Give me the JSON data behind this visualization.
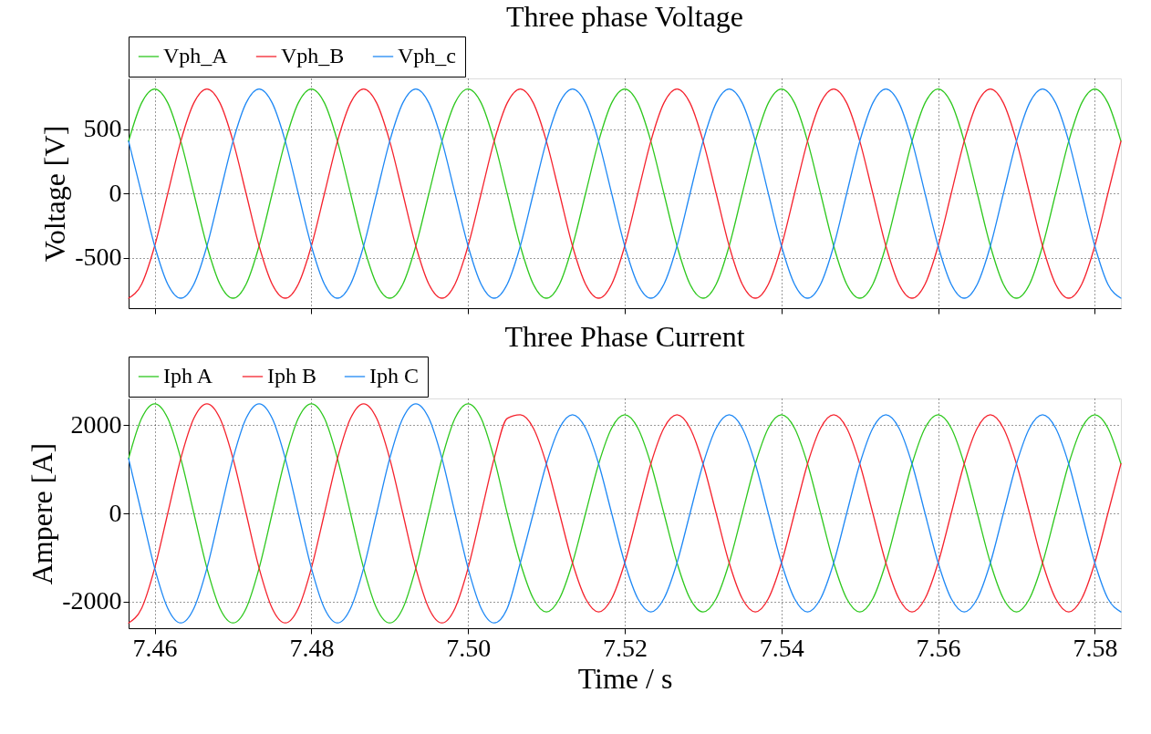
{
  "chart_data": [
    {
      "type": "line",
      "title": "Three phase Voltage",
      "ylabel": "Voltage [V]",
      "grid": true,
      "legend": "top",
      "tick_labels": "y",
      "xlim": [
        7.45667,
        7.58333
      ],
      "ylim": [
        -893,
        897
      ],
      "xticks": [
        7.46,
        7.48,
        7.5,
        7.52,
        7.54,
        7.56,
        7.58
      ],
      "yticks": [
        -500,
        0,
        500
      ],
      "x": [
        7.45667,
        7.45833,
        7.46,
        7.46167,
        7.46333,
        7.465,
        7.46667,
        7.46833,
        7.47,
        7.47167,
        7.47333,
        7.475,
        7.47667,
        7.47833,
        7.48,
        7.48167,
        7.48333,
        7.485,
        7.48667,
        7.48833,
        7.49,
        7.49167,
        7.49333,
        7.495,
        7.49667,
        7.49833,
        7.5,
        7.50167,
        7.50333,
        7.505,
        7.50667,
        7.50833,
        7.51,
        7.51167,
        7.51333,
        7.515,
        7.51667,
        7.51833,
        7.52,
        7.52167,
        7.52333,
        7.525,
        7.52667,
        7.52833,
        7.53,
        7.53167,
        7.53333,
        7.535,
        7.53667,
        7.53833,
        7.54,
        7.54167,
        7.54333,
        7.545,
        7.54667,
        7.54833,
        7.55,
        7.55167,
        7.55333,
        7.555,
        7.55667,
        7.55833,
        7.56,
        7.56167,
        7.56333,
        7.565,
        7.56667,
        7.56833,
        7.57,
        7.57167,
        7.57333,
        7.575,
        7.57667,
        7.57833,
        7.58,
        7.58167,
        7.58333
      ],
      "series": [
        {
          "name": "Vph_A",
          "color": "#2ec81e",
          "values": [
            408,
            706,
            815,
            706,
            408,
            0,
            -408,
            -706,
            -815,
            -706,
            -408,
            0,
            408,
            706,
            815,
            706,
            408,
            0,
            -408,
            -706,
            -815,
            -706,
            -408,
            0,
            408,
            706,
            815,
            706,
            408,
            0,
            -408,
            -706,
            -815,
            -706,
            -408,
            0,
            408,
            706,
            815,
            706,
            408,
            0,
            -408,
            -706,
            -815,
            -706,
            -408,
            0,
            408,
            706,
            815,
            706,
            408,
            0,
            -408,
            -706,
            -815,
            -706,
            -408,
            0,
            408,
            706,
            815,
            706,
            408,
            0,
            -408,
            -706,
            -815,
            -706,
            -408,
            0,
            408,
            706,
            815,
            706,
            408
          ]
        },
        {
          "name": "Vph_B",
          "color": "#f5222d",
          "values": [
            -815,
            -706,
            -408,
            0,
            408,
            706,
            815,
            706,
            408,
            0,
            -408,
            -706,
            -815,
            -706,
            -408,
            0,
            408,
            706,
            815,
            706,
            408,
            0,
            -408,
            -706,
            -815,
            -706,
            -408,
            0,
            408,
            706,
            815,
            706,
            408,
            0,
            -408,
            -706,
            -815,
            -706,
            -408,
            0,
            408,
            706,
            815,
            706,
            408,
            0,
            -408,
            -706,
            -815,
            -706,
            -408,
            0,
            408,
            706,
            815,
            706,
            408,
            0,
            -408,
            -706,
            -815,
            -706,
            -408,
            0,
            408,
            706,
            815,
            706,
            408,
            0,
            -408,
            -706,
            -815,
            -706,
            -408,
            0,
            408
          ]
        },
        {
          "name": "Vph_c",
          "color": "#1e88f5",
          "values": [
            408,
            0,
            -408,
            -706,
            -815,
            -706,
            -408,
            0,
            408,
            706,
            815,
            706,
            408,
            0,
            -408,
            -706,
            -815,
            -706,
            -408,
            0,
            408,
            706,
            815,
            706,
            408,
            0,
            -408,
            -706,
            -815,
            -706,
            -408,
            0,
            408,
            706,
            815,
            706,
            408,
            0,
            -408,
            -706,
            -815,
            -706,
            -408,
            0,
            408,
            706,
            815,
            706,
            408,
            0,
            -408,
            -706,
            -815,
            -706,
            -408,
            0,
            408,
            706,
            815,
            706,
            408,
            0,
            -408,
            -706,
            -815,
            -706,
            -408,
            0,
            408,
            706,
            815,
            706,
            408,
            0,
            -408,
            -706,
            -815
          ]
        }
      ]
    },
    {
      "type": "line",
      "title": "Three Phase Current",
      "xlabel": "Time / s",
      "ylabel": "Ampere [A]",
      "grid": true,
      "legend": "top",
      "xlim": [
        7.45667,
        7.58333
      ],
      "ylim": [
        -2600,
        2600
      ],
      "xticks": [
        7.46,
        7.48,
        {
          "value": 7.5,
          "label": "7.50"
        },
        7.52,
        7.54,
        7.56,
        7.58
      ],
      "yticks": [
        -2000,
        0,
        2000
      ],
      "x": [
        7.45667,
        7.45833,
        7.46,
        7.46167,
        7.46333,
        7.465,
        7.46667,
        7.46833,
        7.47,
        7.47167,
        7.47333,
        7.475,
        7.47667,
        7.47833,
        7.48,
        7.48167,
        7.48333,
        7.485,
        7.48667,
        7.48833,
        7.49,
        7.49167,
        7.49333,
        7.495,
        7.49667,
        7.49833,
        7.5,
        7.50167,
        7.50333,
        7.505,
        7.50667,
        7.50833,
        7.51,
        7.51167,
        7.51333,
        7.515,
        7.51667,
        7.51833,
        7.52,
        7.52167,
        7.52333,
        7.525,
        7.52667,
        7.52833,
        7.53,
        7.53167,
        7.53333,
        7.535,
        7.53667,
        7.53833,
        7.54,
        7.54167,
        7.54333,
        7.545,
        7.54667,
        7.54833,
        7.55,
        7.55167,
        7.55333,
        7.555,
        7.55667,
        7.55833,
        7.56,
        7.56167,
        7.56333,
        7.565,
        7.56667,
        7.56833,
        7.57,
        7.57167,
        7.57333,
        7.575,
        7.57667,
        7.57833,
        7.58,
        7.58167,
        7.58333
      ],
      "series": [
        {
          "name": "Iph A",
          "color": "#2ec81e",
          "values": [
            1240,
            2150,
            2480,
            2150,
            1240,
            0,
            -1240,
            -2150,
            -2480,
            -2150,
            -1240,
            0,
            1240,
            2150,
            2480,
            2150,
            1240,
            0,
            -1240,
            -2150,
            -2480,
            -2150,
            -1240,
            0,
            1240,
            2150,
            2480,
            2150,
            1240,
            0,
            -1120,
            -1930,
            -2230,
            -1930,
            -1120,
            0,
            1120,
            1930,
            2230,
            1930,
            1120,
            0,
            -1120,
            -1930,
            -2230,
            -1930,
            -1120,
            0,
            1120,
            1930,
            2230,
            1930,
            1120,
            0,
            -1120,
            -1930,
            -2230,
            -1930,
            -1120,
            0,
            1120,
            1930,
            2230,
            1930,
            1120,
            0,
            -1120,
            -1930,
            -2230,
            -1930,
            -1120,
            0,
            1120,
            1930,
            2230,
            1930,
            1120
          ]
        },
        {
          "name": "Iph B",
          "color": "#f5222d",
          "values": [
            -2480,
            -2150,
            -1240,
            0,
            1240,
            2150,
            2480,
            2150,
            1240,
            0,
            -1240,
            -2150,
            -2480,
            -2150,
            -1240,
            0,
            1240,
            2150,
            2480,
            2150,
            1240,
            0,
            -1240,
            -2150,
            -2480,
            -2150,
            -1240,
            0,
            1240,
            2150,
            2230,
            1930,
            1120,
            0,
            -1120,
            -1930,
            -2230,
            -1930,
            -1120,
            0,
            1120,
            1930,
            2230,
            1930,
            1120,
            0,
            -1120,
            -1930,
            -2230,
            -1930,
            -1120,
            0,
            1120,
            1930,
            2230,
            1930,
            1120,
            0,
            -1120,
            -1930,
            -2230,
            -1930,
            -1120,
            0,
            1120,
            1930,
            2230,
            1930,
            1120,
            0,
            -1120,
            -1930,
            -2230,
            -1930,
            -1120,
            0,
            1120
          ]
        },
        {
          "name": "Iph C",
          "color": "#1e88f5",
          "values": [
            1240,
            0,
            -1240,
            -2150,
            -2480,
            -2150,
            -1240,
            0,
            1240,
            2150,
            2480,
            2150,
            1240,
            0,
            -1240,
            -2150,
            -2480,
            -2150,
            -1240,
            0,
            1240,
            2150,
            2480,
            2150,
            1240,
            0,
            -1240,
            -2150,
            -2480,
            -2150,
            -1120,
            0,
            1120,
            1930,
            2230,
            1930,
            1120,
            0,
            -1120,
            -1930,
            -2230,
            -1930,
            -1120,
            0,
            1120,
            1930,
            2230,
            1930,
            1120,
            0,
            -1120,
            -1930,
            -2230,
            -1930,
            -1120,
            0,
            1120,
            1930,
            2230,
            1930,
            1120,
            0,
            -1120,
            -1930,
            -2230,
            -1930,
            -1120,
            0,
            1120,
            1930,
            2230,
            1930,
            1120,
            0,
            -1120,
            -1930,
            -2230
          ]
        }
      ]
    }
  ]
}
